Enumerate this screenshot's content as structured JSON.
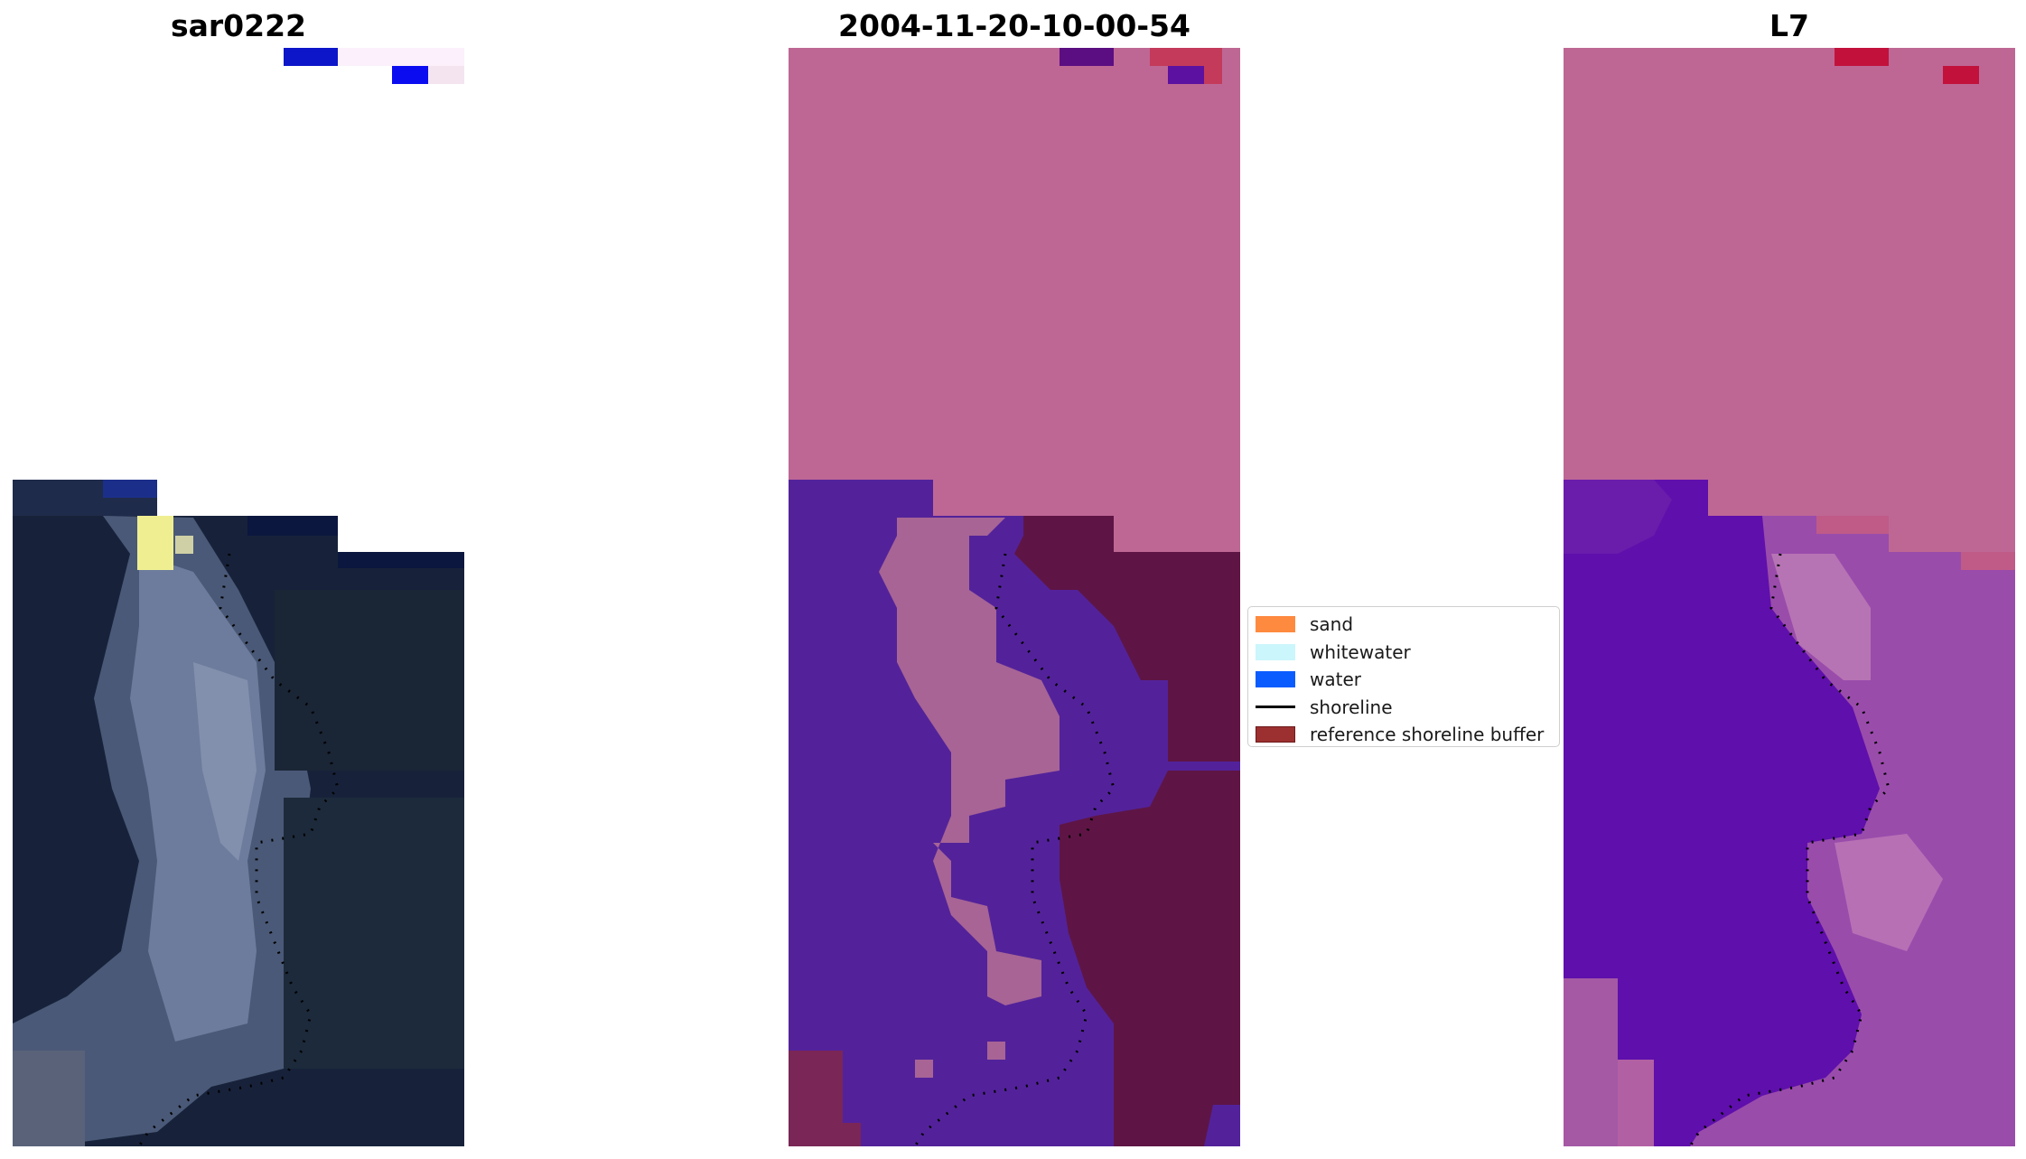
{
  "panels": [
    {
      "title": "sar0222"
    },
    {
      "title": "2004-11-20-10-00-54"
    },
    {
      "title": "L7"
    }
  ],
  "legend": {
    "items": [
      {
        "label": "sand",
        "kind": "patch",
        "color": "#fe8a3f",
        "edge": "none"
      },
      {
        "label": "whitewater",
        "kind": "patch",
        "color": "#cbf6fb",
        "edge": "none"
      },
      {
        "label": "water",
        "kind": "patch",
        "color": "#0a5cff",
        "edge": "none"
      },
      {
        "label": "shoreline",
        "kind": "line",
        "color": "#000000",
        "edge": "none"
      },
      {
        "label": "reference shoreline buffer",
        "kind": "patch",
        "color": "#9c3030",
        "edge": "#6e1a1a"
      }
    ]
  },
  "colors": {
    "rgb_background": "#17223a",
    "classified_buffer": "#be6795",
    "classified_water": "#53229a",
    "classified_sand": "#a76495",
    "classified_land": "#5e1545",
    "mndwi_buffer": "#be6795",
    "mndwi_water": "#5f0fab",
    "mndwi_land": "#9a4cab"
  }
}
